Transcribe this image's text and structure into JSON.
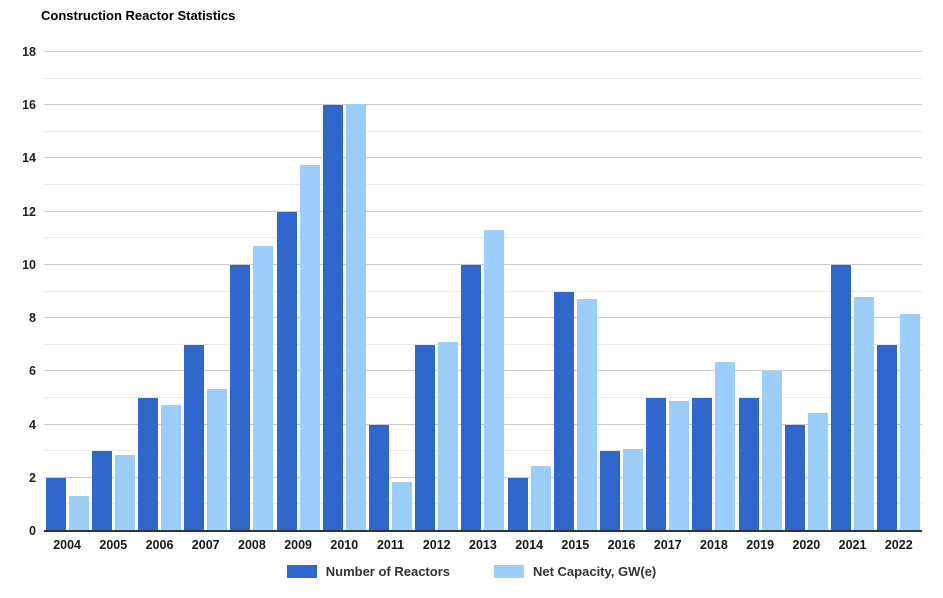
{
  "chart_data": {
    "type": "bar",
    "title": "Construction Reactor Statistics",
    "categories": [
      "2004",
      "2005",
      "2006",
      "2007",
      "2008",
      "2009",
      "2010",
      "2011",
      "2012",
      "2013",
      "2014",
      "2015",
      "2016",
      "2017",
      "2018",
      "2019",
      "2020",
      "2021",
      "2022"
    ],
    "series": [
      {
        "name": "Number of Reactors",
        "color": "#3067CC",
        "values": [
          2,
          3,
          5,
          7,
          10,
          12,
          16,
          4,
          7,
          10,
          2,
          9,
          3,
          5,
          5,
          5,
          4,
          10,
          7
        ]
      },
      {
        "name": "Net Capacity, GW(e)",
        "color": "#9CCEFB",
        "values": [
          1.3,
          2.85,
          4.75,
          5.35,
          10.7,
          13.75,
          16.05,
          1.85,
          7.1,
          11.3,
          2.45,
          8.7,
          3.1,
          4.9,
          6.35,
          6.0,
          4.45,
          8.8,
          8.15
        ]
      }
    ],
    "ylim": [
      0,
      18
    ],
    "y_tick_step": 2,
    "gridline_step": 1,
    "grid": true,
    "xlabel": "",
    "ylabel": "",
    "legend_position": "bottom"
  }
}
